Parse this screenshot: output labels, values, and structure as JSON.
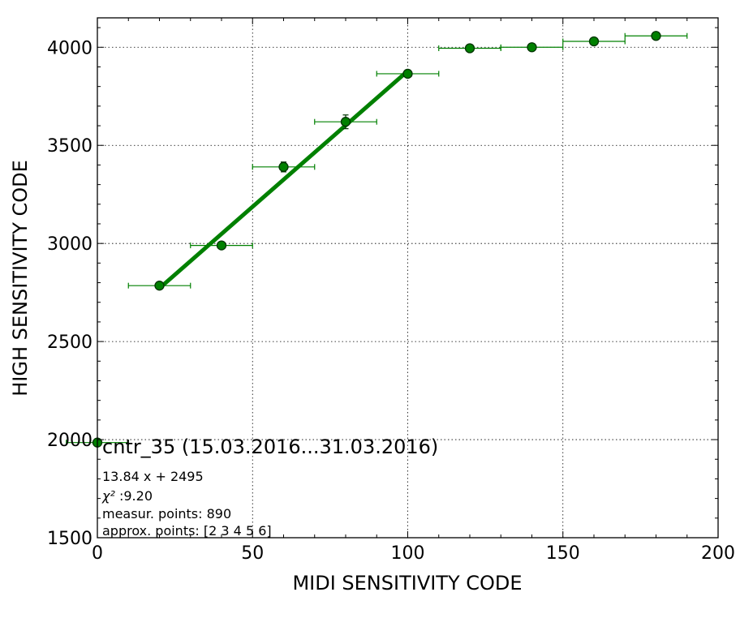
{
  "chart_data": {
    "type": "scatter",
    "xlabel": "MIDI SENSITIVITY CODE",
    "ylabel": "HIGH SENSITIVITY CODE",
    "xlim": [
      0,
      200
    ],
    "ylim": [
      1500,
      4150
    ],
    "x_ticks": [
      0,
      50,
      100,
      150,
      200
    ],
    "y_ticks": [
      1500,
      2000,
      2500,
      3000,
      3500,
      4000
    ],
    "grid": true,
    "colors": {
      "series": "#008000",
      "marker_fill": "#008000",
      "marker_edge": "#003300"
    },
    "points": [
      {
        "x": 0,
        "y": 1985,
        "xerr": 10,
        "yerr": 0
      },
      {
        "x": 20,
        "y": 2785,
        "xerr": 10,
        "yerr": 0
      },
      {
        "x": 40,
        "y": 2990,
        "xerr": 10,
        "yerr": 0
      },
      {
        "x": 60,
        "y": 3390,
        "xerr": 10,
        "yerr": 25
      },
      {
        "x": 80,
        "y": 3620,
        "xerr": 10,
        "yerr": 35
      },
      {
        "x": 100,
        "y": 3865,
        "xerr": 10,
        "yerr": 0
      },
      {
        "x": 120,
        "y": 3995,
        "xerr": 10,
        "yerr": 0
      },
      {
        "x": 140,
        "y": 4000,
        "xerr": 10,
        "yerr": 0
      },
      {
        "x": 160,
        "y": 4030,
        "xerr": 10,
        "yerr": 0
      },
      {
        "x": 180,
        "y": 4058,
        "xerr": 10,
        "yerr": 0
      }
    ],
    "fit": {
      "slope": 13.84,
      "intercept": 2495,
      "x_range": [
        20,
        100
      ]
    },
    "annotations": {
      "title": "cntr_35 (15.03.2016...31.03.2016)",
      "equation": "13.84 x + 2495",
      "chi2_symbol": "χ²",
      "chi2_value": " :9.20",
      "measur_points": "measur. points: 890",
      "approx_points": "approx. points: [2 3 4 5 6]"
    }
  }
}
